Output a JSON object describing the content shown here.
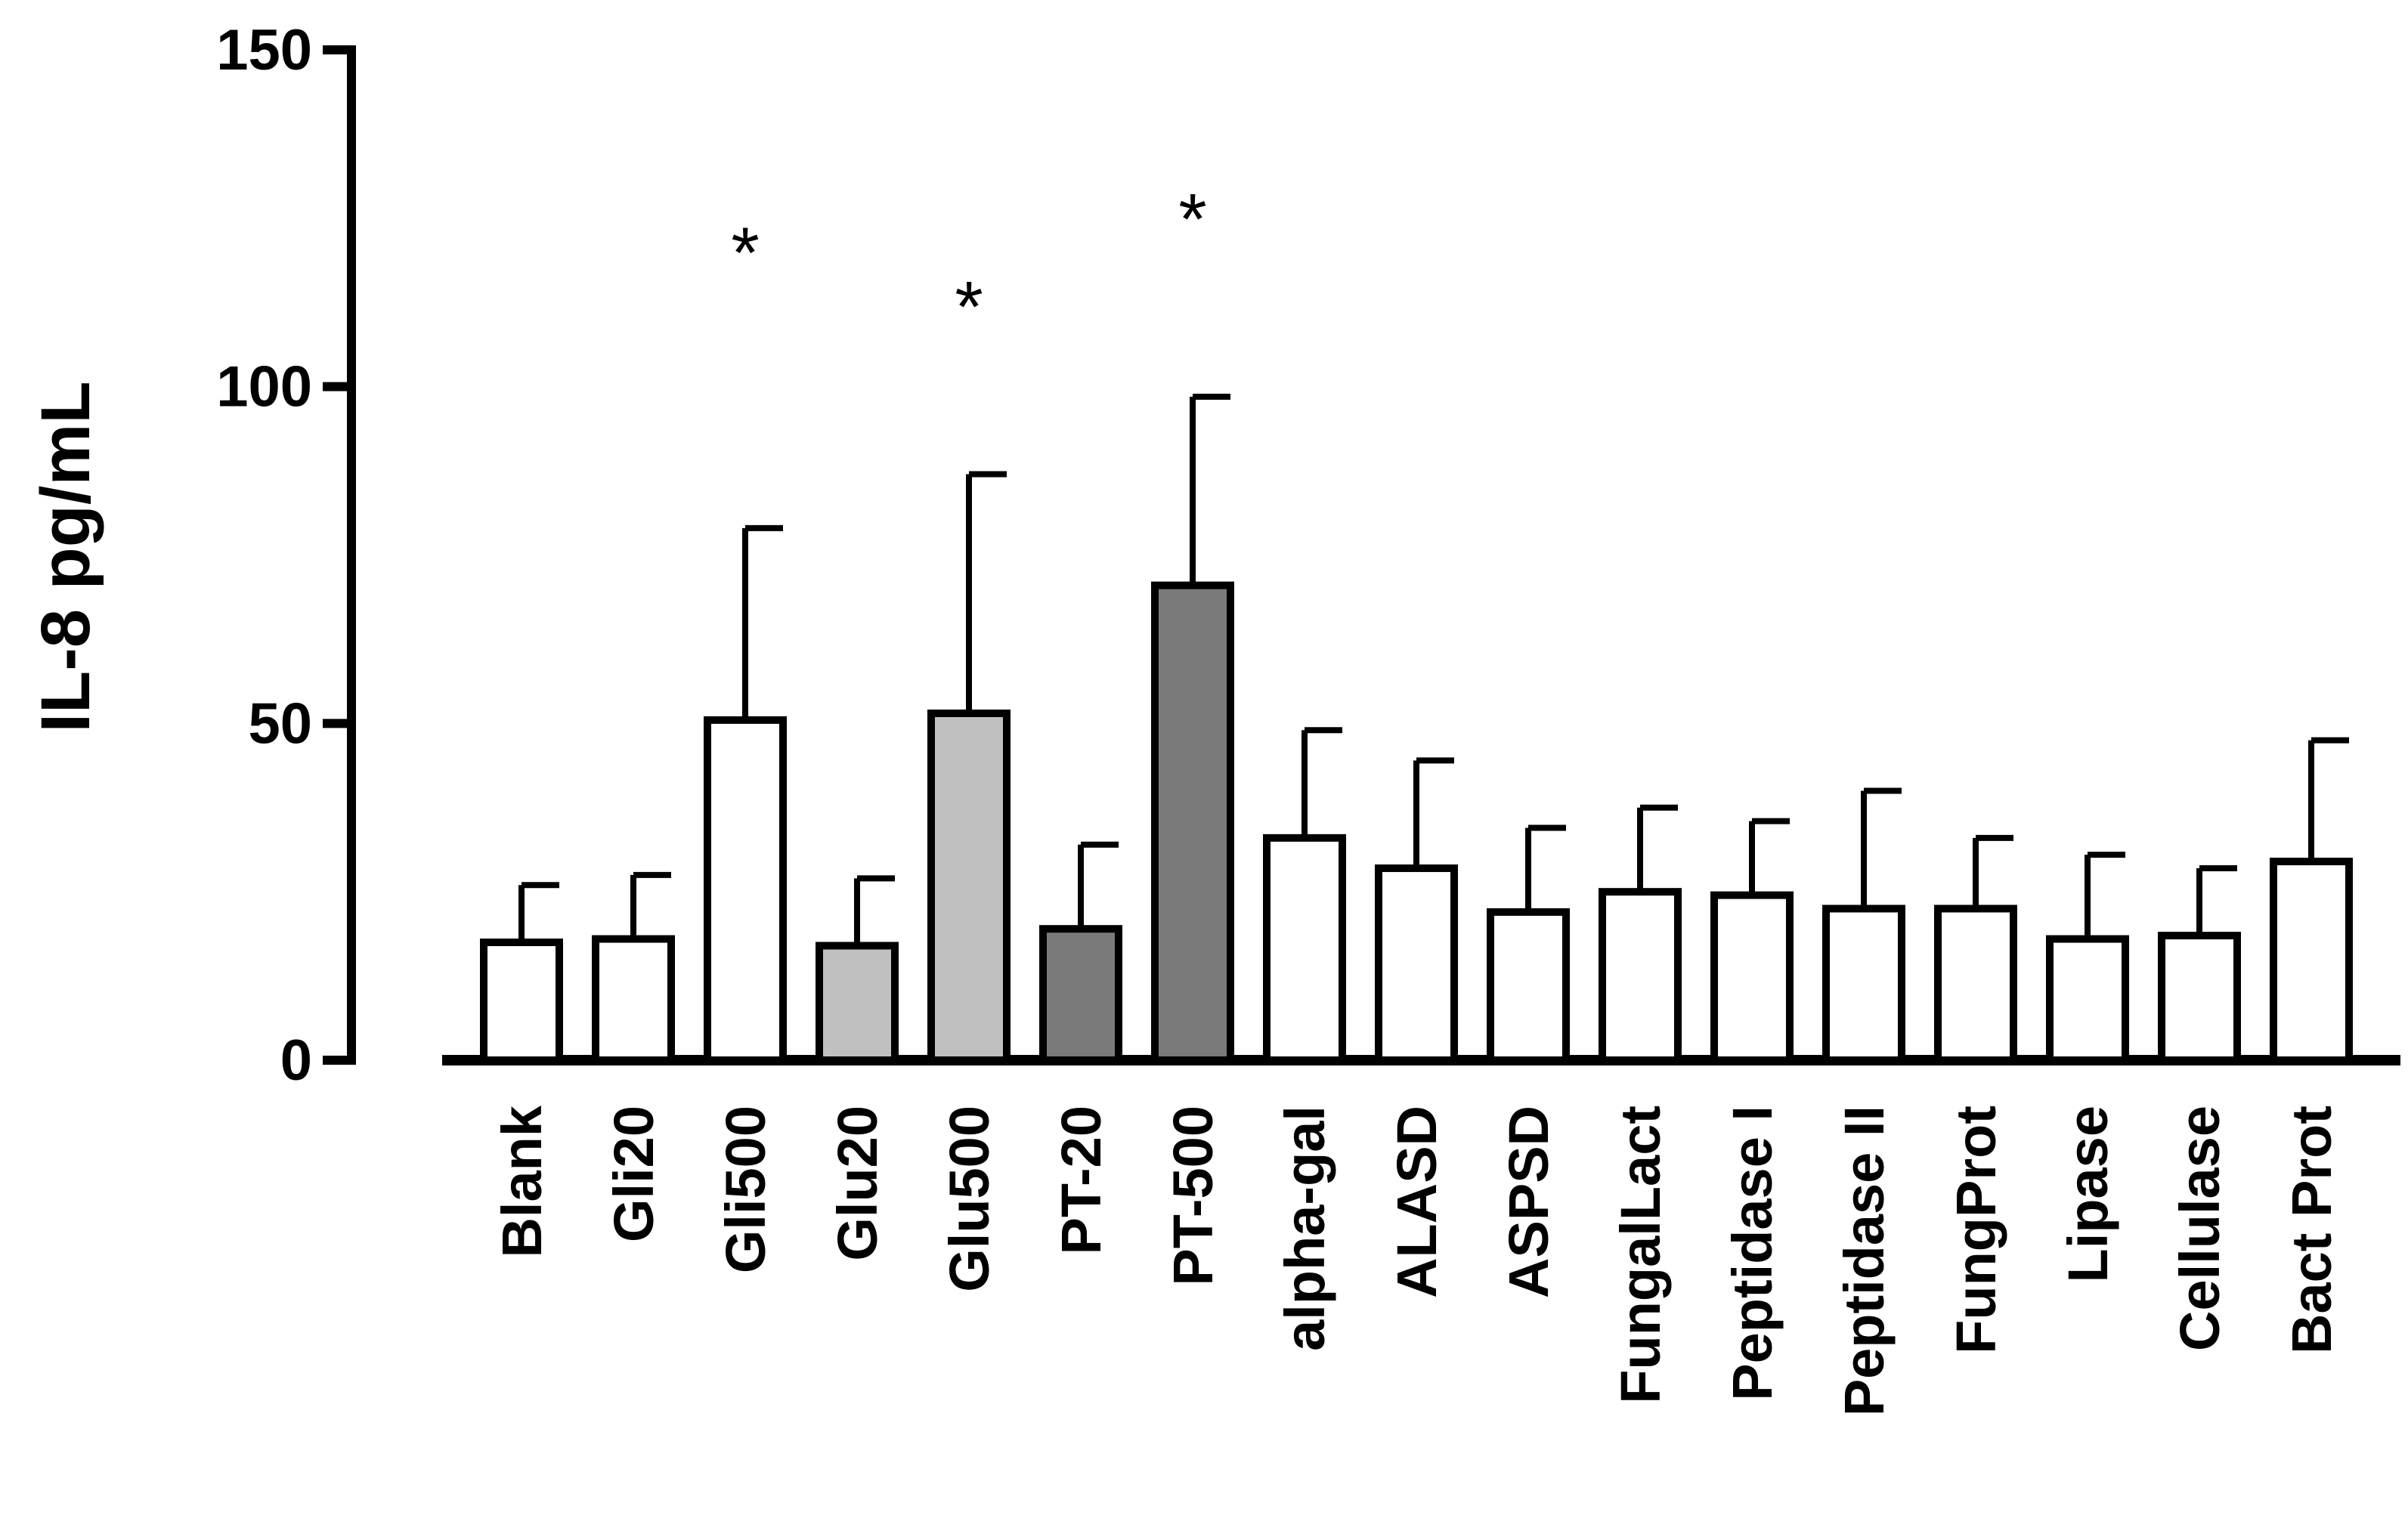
{
  "chart_data": {
    "type": "bar",
    "title": "",
    "xlabel": "",
    "ylabel": "IL-8 pg/mL",
    "ylim": [
      0,
      150
    ],
    "yticks": [
      0,
      50,
      100,
      150
    ],
    "grid": false,
    "categories": [
      "Blank",
      "Gli20",
      "Gli500",
      "Glu20",
      "Glu500",
      "PT-20",
      "PT-500",
      "alpha-gal",
      "ALASD",
      "ASPSD",
      "FungalLact",
      "Peptidase I",
      "Peptidase II",
      "FungProt",
      "Lipase",
      "Cellulase",
      "Bact Prot"
    ],
    "values": [
      17.5,
      18,
      50.5,
      17,
      51.5,
      19.5,
      70.5,
      33,
      28.5,
      22,
      25,
      24.5,
      22.5,
      22.5,
      18,
      18.5,
      29.5
    ],
    "error_upper": [
      26,
      27.5,
      79,
      27,
      87,
      32,
      98.5,
      49,
      44.5,
      34.5,
      37.5,
      35.5,
      40,
      33,
      30.5,
      28.5,
      47.5
    ],
    "fill_colors": [
      "#ffffff",
      "#ffffff",
      "#ffffff",
      "#c0c0c0",
      "#c0c0c0",
      "#7a7a7a",
      "#7a7a7a",
      "#ffffff",
      "#ffffff",
      "#ffffff",
      "#ffffff",
      "#ffffff",
      "#ffffff",
      "#ffffff",
      "#ffffff",
      "#ffffff",
      "#ffffff"
    ],
    "significance": [
      {
        "category": "Gli500",
        "label": "*",
        "y": 122
      },
      {
        "category": "Glu500",
        "label": "*",
        "y": 114
      },
      {
        "category": "PT-500",
        "label": "*",
        "y": 127
      }
    ]
  }
}
